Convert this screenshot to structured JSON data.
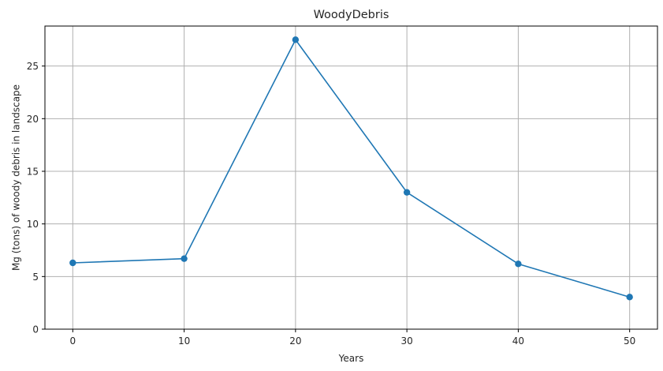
{
  "chart_data": {
    "type": "line",
    "title": "WoodyDebris",
    "xlabel": "Years",
    "ylabel": "Mg (tons) of woody debris in landscape",
    "x": [
      0,
      10,
      20,
      30,
      40,
      50
    ],
    "series": [
      {
        "values": [
          6.3,
          6.7,
          27.5,
          13.0,
          6.2,
          3.05
        ],
        "color": "#1f77b4",
        "marker": "circle"
      }
    ],
    "xlim": [
      -2.5,
      52.5
    ],
    "ylim": [
      0,
      28.8
    ],
    "xticks": [
      0,
      10,
      20,
      30,
      40,
      50
    ],
    "yticks": [
      0,
      5,
      10,
      15,
      20,
      25
    ],
    "xtick_labels": [
      "0",
      "10",
      "20",
      "30",
      "40",
      "50"
    ],
    "ytick_labels": [
      "0",
      "5",
      "10",
      "15",
      "20",
      "25"
    ],
    "grid": true,
    "grid_color": "#b0b0b0",
    "axis_color": "#000000"
  }
}
